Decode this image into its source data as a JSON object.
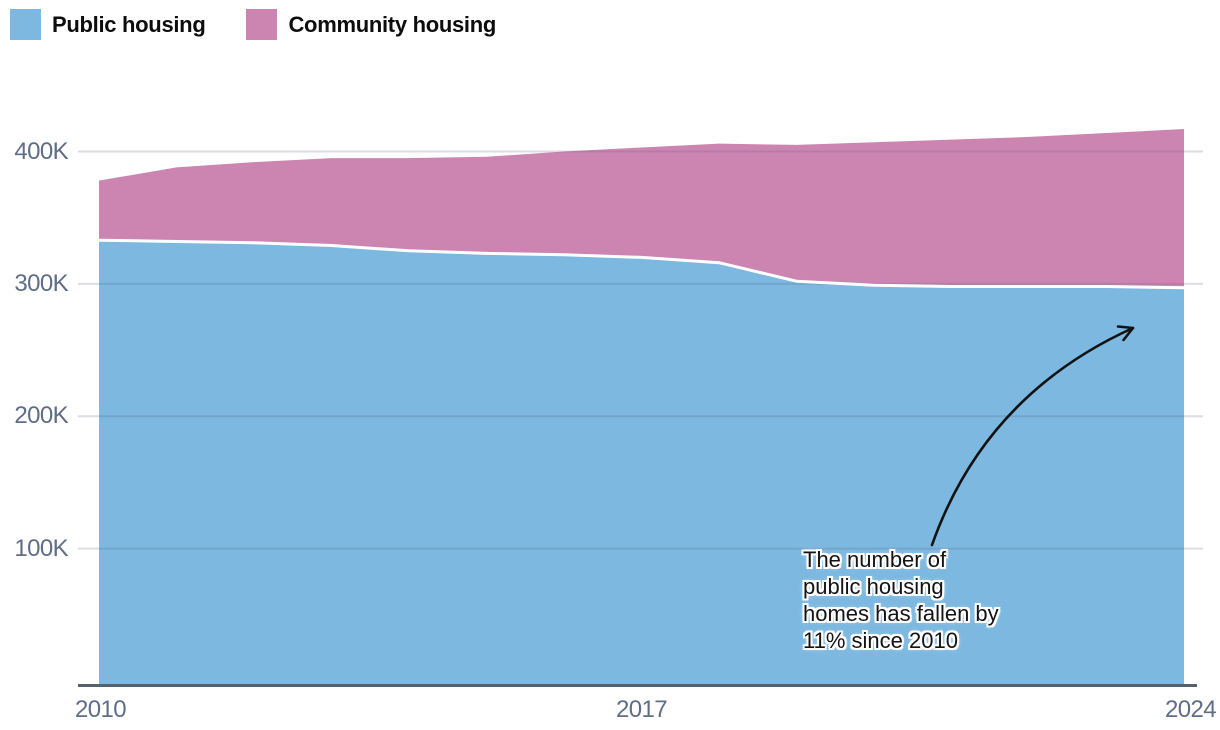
{
  "legend": {
    "items": [
      {
        "label": "Public housing",
        "color": "#7cb8e0"
      },
      {
        "label": "Community housing",
        "color": "#cc85b1"
      }
    ]
  },
  "axis": {
    "y_ticks": [
      {
        "label": "400K",
        "value": 400
      },
      {
        "label": "300K",
        "value": 300
      },
      {
        "label": "200K",
        "value": 200
      },
      {
        "label": "100K",
        "value": 100
      }
    ],
    "x_ticks": [
      {
        "label": "2010",
        "year": 2010
      },
      {
        "label": "2017",
        "year": 2017
      },
      {
        "label": "2024",
        "year": 2024
      }
    ]
  },
  "annotation": {
    "text": "The number of\npublic housing\nhomes has fallen by\n11% since 2010",
    "points_to": "Public housing area at 2024"
  },
  "chart_data": {
    "type": "area",
    "stacked": true,
    "x": [
      2010,
      2011,
      2012,
      2013,
      2014,
      2015,
      2016,
      2017,
      2018,
      2019,
      2020,
      2021,
      2022,
      2023,
      2024
    ],
    "series": [
      {
        "name": "Public housing",
        "color": "#7cb8e0",
        "values": [
          333,
          332,
          331,
          329,
          325,
          323,
          322,
          320,
          316,
          302,
          299,
          298,
          298,
          298,
          297
        ]
      },
      {
        "name": "Community housing",
        "color": "#cc85b1",
        "values": [
          45,
          56,
          61,
          66,
          70,
          73,
          78,
          83,
          90,
          103,
          108,
          111,
          113,
          116,
          120
        ]
      }
    ],
    "y_unit": "K (thousands of homes)",
    "ylim": [
      0,
      440
    ],
    "grid": true,
    "legend_position": "top-left"
  },
  "colors": {
    "grid_line": "rgba(90,106,128,0.22)",
    "axis_line": "#55616e",
    "tick_label": "#5f6d86",
    "boundary_line": "#ffffff",
    "arrow": "#121212"
  }
}
